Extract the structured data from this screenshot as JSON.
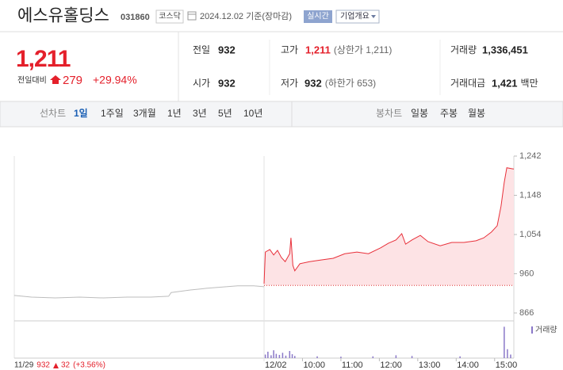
{
  "header": {
    "name": "에스유홀딩스",
    "code": "031860",
    "market": "코스닥",
    "date": "2024.12.02 기준(장마감)",
    "realtime": "실시간",
    "company_info": "기업개요"
  },
  "quote": {
    "price": "1,211",
    "change_label": "전일대비",
    "change": "279",
    "change_pct": "+29.94%",
    "color": "#e4202b"
  },
  "stats": [
    {
      "label": "전일",
      "value": "932"
    },
    {
      "label": "고가",
      "value": "1,211",
      "note": "(상한가 1,211)",
      "color": "#e4202b"
    },
    {
      "label": "거래량",
      "value": "1,336,451"
    },
    {
      "label": "시가",
      "value": "932"
    },
    {
      "label": "저가",
      "value": "932",
      "note": "(하한가 653)"
    },
    {
      "label": "거래대금",
      "value": "1,421",
      "unit": "백만"
    }
  ],
  "tabs": {
    "line_label": "선차트",
    "line": [
      "1일",
      "1주일",
      "3개월",
      "1년",
      "3년",
      "5년",
      "10년"
    ],
    "selected": 0,
    "candle_label": "봉차트",
    "candle": [
      "일봉",
      "주봉",
      "월봉"
    ]
  },
  "chart_data": {
    "type": "line",
    "xlim": [
      -390,
      390
    ],
    "ylim": [
      866,
      1242
    ],
    "yticks": [
      866,
      960,
      {
        "value": 1054,
        "label": "1,054"
      },
      {
        "value": 1148,
        "label": "1,148"
      },
      {
        "value": 1242,
        "label": "1,242"
      }
    ],
    "xticks": [
      {
        "value": 0,
        "label": "12/02"
      },
      {
        "value": 60,
        "label": "10:00"
      },
      {
        "value": 120,
        "label": "11:00"
      },
      {
        "value": 180,
        "label": "12:00"
      },
      {
        "value": 240,
        "label": "13:00"
      },
      {
        "value": 300,
        "label": "14:00"
      },
      {
        "value": 360,
        "label": "15:00"
      }
    ],
    "prev_day": {
      "date": "11/29",
      "close": 932,
      "change": 32,
      "change_pct": "(+3.56%)",
      "color": "#e4202b"
    },
    "series": [
      {
        "color": "#bdbdbd",
        "x": [
          -390,
          -363,
          -326,
          -288,
          -251,
          -214,
          -177,
          -149,
          -145,
          -115,
          -90,
          -59,
          -41,
          -16,
          0
        ],
        "values": [
          908,
          904,
          902,
          904,
          902,
          904,
          904,
          906,
          915,
          921,
          925,
          929,
          931,
          931,
          929
        ]
      },
      {
        "color": "#e8303a",
        "fill": "#fde3e5",
        "x": [
          0,
          2,
          9,
          15,
          21,
          27,
          33,
          40,
          42,
          45,
          48,
          56,
          71,
          89,
          108,
          126,
          145,
          163,
          182,
          194,
          206,
          215,
          221,
          231,
          244,
          256,
          275,
          293,
          312,
          331,
          343,
          355,
          364,
          370,
          375,
          379,
          390
        ],
        "values": [
          936,
          1012,
          1018,
          1005,
          1016,
          999,
          989,
          1008,
          1046,
          980,
          967,
          984,
          989,
          993,
          997,
          1008,
          1012,
          1008,
          1022,
          1033,
          1041,
          1056,
          1031,
          1041,
          1052,
          1037,
          1027,
          1035,
          1035,
          1039,
          1046,
          1060,
          1075,
          1122,
          1179,
          1214,
          1211
        ]
      }
    ],
    "volume": {
      "label": "거래량",
      "color": "#8a78c8",
      "ylim": [
        0,
        100
      ],
      "x": [
        2,
        6,
        11,
        15,
        19,
        24,
        29,
        34,
        40,
        44,
        48,
        83,
        120,
        170,
        206,
        231,
        306,
        375,
        380,
        385
      ],
      "values": [
        10,
        18,
        8,
        22,
        12,
        9,
        15,
        7,
        20,
        11,
        6,
        5,
        4,
        5,
        8,
        6,
        5,
        88,
        25,
        10
      ]
    }
  }
}
